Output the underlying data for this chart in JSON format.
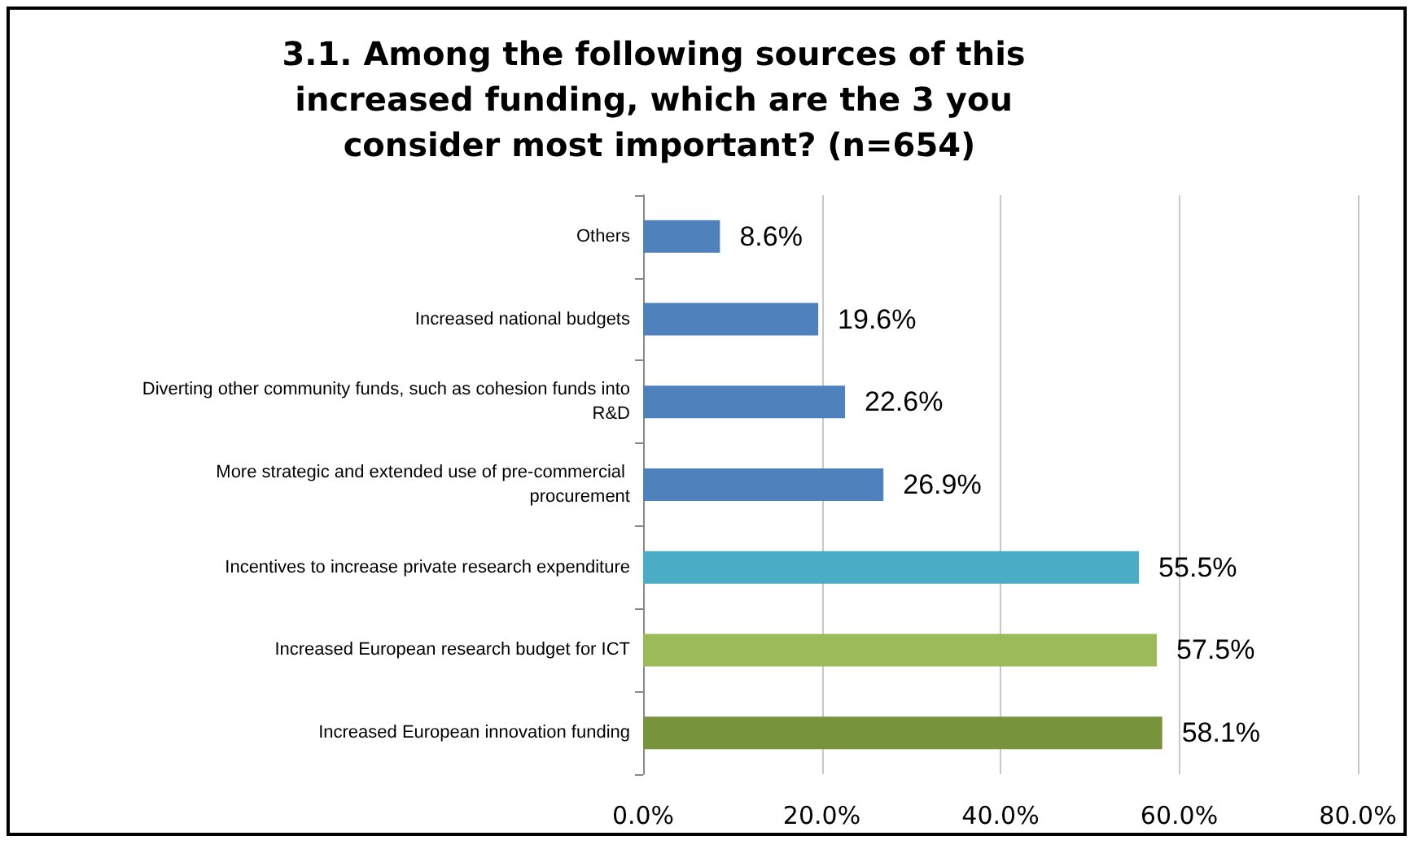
{
  "chart_data": {
    "type": "bar",
    "orientation": "horizontal",
    "title": "3.1. Among the following sources of this increased funding, which are the 3 you consider most important? (n=654)",
    "categories": [
      "Others",
      "Increased national budgets",
      "Diverting other community funds, such as cohesion funds into R&D",
      "More strategic and extended use of pre-commercial procurement",
      "Incentives to increase private research expenditure",
      "Increased European research budget for ICT",
      "Increased European innovation funding"
    ],
    "values": [
      8.6,
      19.6,
      22.6,
      26.9,
      55.5,
      57.5,
      58.1
    ],
    "colors": [
      "#4f81bd",
      "#4f81bd",
      "#4f81bd",
      "#4f81bd",
      "#4bacc6",
      "#9bbb59",
      "#77933c"
    ],
    "value_labels": [
      "8.6%",
      "19.6%",
      "22.6%",
      "26.9%",
      "55.5%",
      "57.5%",
      "58.1%"
    ],
    "xlim": [
      0,
      80
    ],
    "xticks": [
      {
        "value": 0,
        "label": "0.0%"
      },
      {
        "value": 20,
        "label": "20.0%"
      },
      {
        "value": 40,
        "label": "40.0%"
      },
      {
        "value": 60,
        "label": "60.0%"
      },
      {
        "value": 80,
        "label": "80.0%"
      }
    ],
    "grid": "x"
  }
}
